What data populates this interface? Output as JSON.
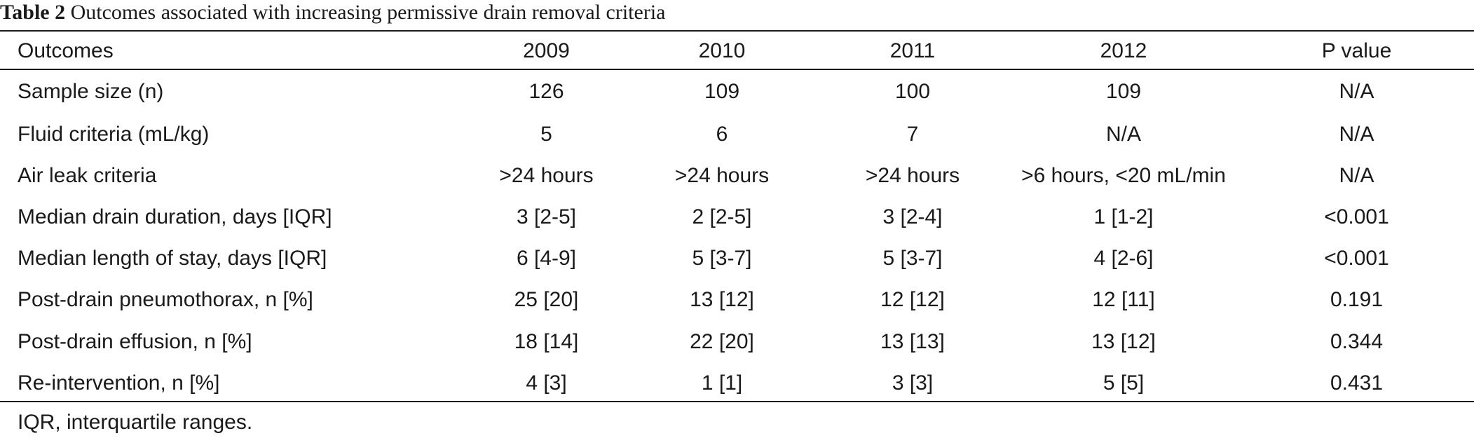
{
  "caption": {
    "label": "Table 2",
    "title": "Outcomes associated with increasing permissive drain removal criteria"
  },
  "table": {
    "columns": [
      "Outcomes",
      "2009",
      "2010",
      "2011",
      "2012",
      "P value"
    ],
    "rows": [
      [
        "Sample size (n)",
        "126",
        "109",
        "100",
        "109",
        "N/A"
      ],
      [
        "Fluid criteria (mL/kg)",
        "5",
        "6",
        "7",
        "N/A",
        "N/A"
      ],
      [
        "Air leak criteria",
        ">24 hours",
        ">24 hours",
        ">24 hours",
        ">6 hours, <20 mL/min",
        "N/A"
      ],
      [
        "Median drain duration, days [IQR]",
        "3 [2-5]",
        "2 [2-5]",
        "3 [2-4]",
        "1 [1-2]",
        "<0.001"
      ],
      [
        "Median length of stay, days [IQR]",
        "6 [4-9]",
        "5 [3-7]",
        "5 [3-7]",
        "4 [2-6]",
        "<0.001"
      ],
      [
        "Post-drain pneumothorax, n [%]",
        "25 [20]",
        "13 [12]",
        "12 [12]",
        "12 [11]",
        "0.191"
      ],
      [
        "Post-drain effusion, n [%]",
        "18 [14]",
        "22 [20]",
        "13 [13]",
        "13 [12]",
        "0.344"
      ],
      [
        "Re-intervention, n [%]",
        "4 [3]",
        "1 [1]",
        "3 [3]",
        "5 [5]",
        "0.431"
      ]
    ]
  },
  "footnote": "IQR, interquartile ranges."
}
